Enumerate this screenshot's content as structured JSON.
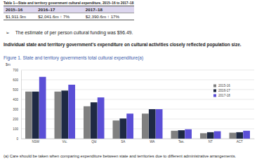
{
  "table": {
    "title": "Table 1—State and territory government cultural expenditure, 2015–16 to 2017–18",
    "header": [
      "2015–16",
      "2016–17",
      "2017–18"
    ],
    "rows": [
      [
        "$1,911.9m",
        "$2,041.6m ↑ 7%",
        "$2,390.6m ↑ 17%"
      ]
    ]
  },
  "bullet": {
    "symbol": "➢",
    "text": "The estimate of per person cultural funding was $96.49."
  },
  "heading": "Individual state and territory government's expenditure on cultural activities closely reflected population size.",
  "chart_data": {
    "type": "bar",
    "title": "Figure 1. State and territory governments total cultural expenditure(a)",
    "y_label": "$m",
    "categories": [
      "NSW",
      "Vic.",
      "Qld",
      "SA",
      "WA",
      "Tas.",
      "NT",
      "ACT"
    ],
    "series": [
      {
        "name": "2015-16",
        "color": "#808080",
        "values": [
          480,
          480,
          330,
          185,
          255,
          80,
          55,
          60
        ]
      },
      {
        "name": "2016-17",
        "color": "#1f2a44",
        "values": [
          480,
          490,
          370,
          205,
          300,
          85,
          65,
          65
        ]
      },
      {
        "name": "2017-18",
        "color": "#5b4fd6",
        "values": [
          630,
          550,
          420,
          255,
          300,
          95,
          75,
          80
        ]
      }
    ],
    "ylim": [
      0,
      700
    ],
    "yticks": [
      0,
      100,
      200,
      300,
      400,
      500,
      600,
      700
    ],
    "grid": true,
    "legend": "right"
  },
  "footnote": "(a) Care should be taken when comparing expenditure between state and territories due to different administrative arrangements."
}
